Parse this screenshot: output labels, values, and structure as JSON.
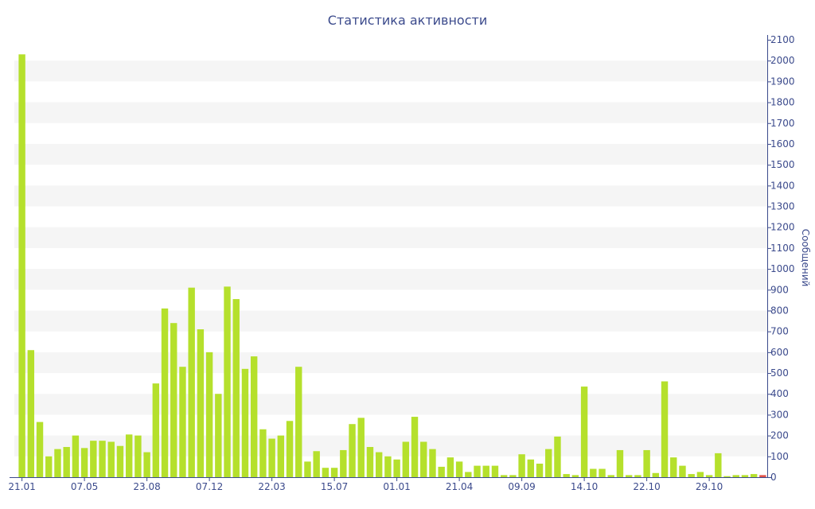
{
  "colors": {
    "bar": "#b5e02c",
    "bar_last": "#e0524a",
    "band": "#f5f5f5",
    "axis": "#3b4a8c",
    "text": "#3b4a8c"
  },
  "chart_data": {
    "type": "bar",
    "title": "Статистика активности",
    "ylabel": "Сообщений",
    "xlabel": "",
    "ylim": [
      0,
      2100
    ],
    "y_ticks": [
      0,
      100,
      200,
      300,
      400,
      500,
      600,
      700,
      800,
      900,
      1000,
      1100,
      1200,
      1300,
      1400,
      1500,
      1600,
      1700,
      1800,
      1900,
      2000,
      2100
    ],
    "y_axis_position": "right",
    "grid": "alternating horizontal bands",
    "legend": "none",
    "x_tick_labels": [
      {
        "index": 0,
        "label": "21.01"
      },
      {
        "index": 7,
        "label": "07.05"
      },
      {
        "index": 14,
        "label": "23.08"
      },
      {
        "index": 21,
        "label": "07.12"
      },
      {
        "index": 28,
        "label": "22.03"
      },
      {
        "index": 35,
        "label": "15.07"
      },
      {
        "index": 42,
        "label": "01.01"
      },
      {
        "index": 49,
        "label": "21.04"
      },
      {
        "index": 56,
        "label": "09.09"
      },
      {
        "index": 63,
        "label": "14.10"
      },
      {
        "index": 70,
        "label": "22.10"
      },
      {
        "index": 77,
        "label": "29.10"
      }
    ],
    "series": [
      {
        "values": [
          2030,
          610,
          265,
          100,
          135,
          145,
          200,
          140,
          175,
          175,
          170,
          150,
          205,
          200,
          120,
          450,
          810,
          740,
          530,
          910,
          710,
          600,
          400,
          915,
          855,
          520,
          580,
          230,
          185,
          200,
          270,
          530,
          75,
          125,
          45,
          45,
          130,
          255,
          285,
          145,
          120,
          100,
          85,
          170,
          290,
          170,
          135,
          50,
          95,
          75,
          25,
          55,
          55,
          55,
          10,
          10,
          110,
          85,
          65,
          135,
          195,
          15,
          10,
          435,
          40,
          40,
          10,
          130,
          10,
          10,
          130,
          20,
          460,
          95,
          55,
          15,
          25,
          10,
          115,
          5,
          10,
          10,
          15,
          10
        ]
      }
    ]
  }
}
